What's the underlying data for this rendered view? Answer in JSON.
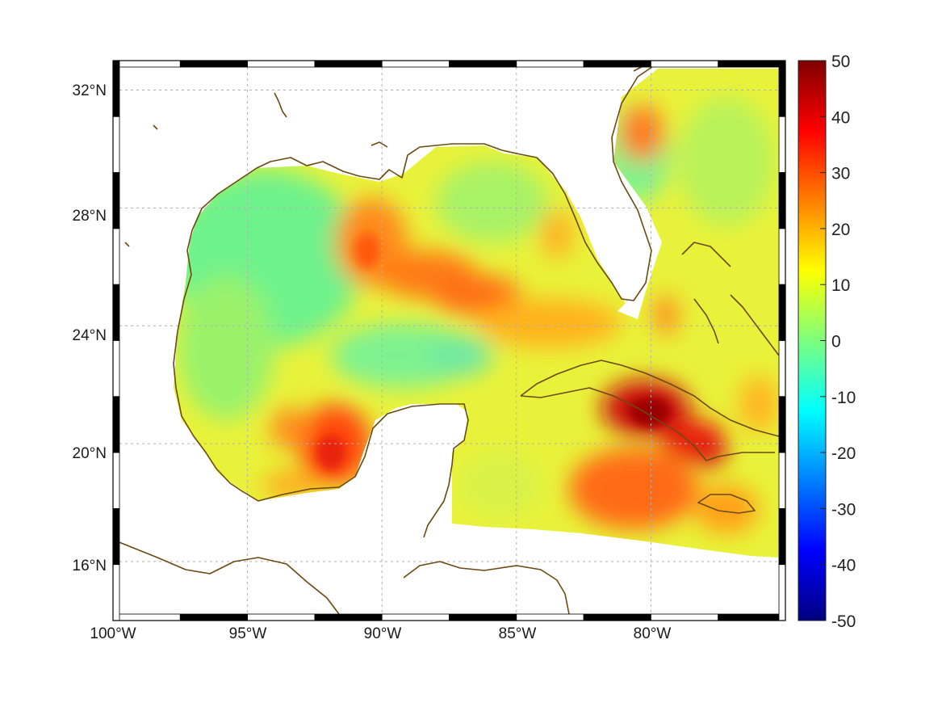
{
  "map": {
    "lon_range": [
      -100,
      -75
    ],
    "lat_range": [
      14,
      33
    ],
    "lon_tick_labels": [
      "100°W",
      "95°W",
      "90°W",
      "85°W",
      "80°W"
    ],
    "lat_tick_labels": [
      "32°N",
      "28°N",
      "24°N",
      "20°N",
      "16°N"
    ],
    "grid": true,
    "frame": "alternating black and white border",
    "coastline_color": "#6b4a10",
    "land_color": "#ffffff",
    "colormap": "jet"
  },
  "colorbar": {
    "range": [
      -50,
      50
    ],
    "tick_labels": [
      "50",
      "40",
      "30",
      "20",
      "10",
      "0",
      "-10",
      "-20",
      "-30",
      "-40",
      "-50"
    ]
  }
}
